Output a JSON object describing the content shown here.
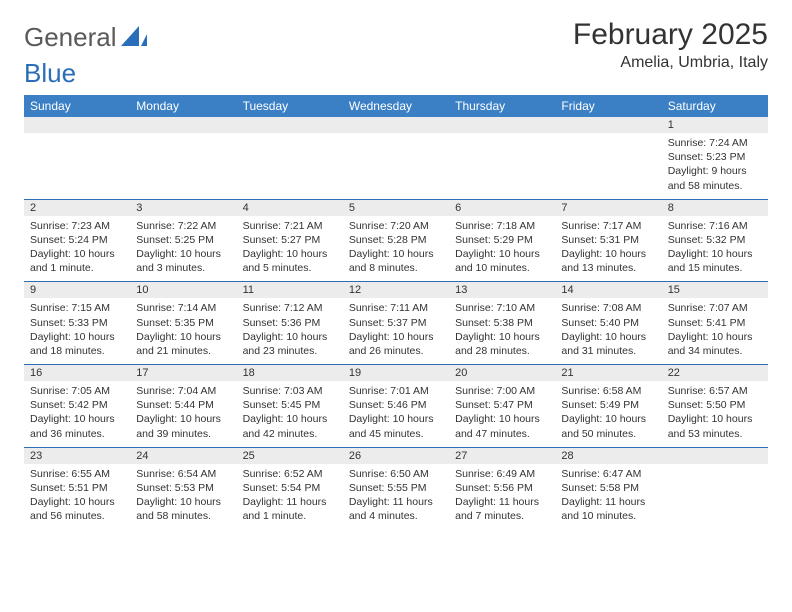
{
  "logo": {
    "word1": "General",
    "word2": "Blue"
  },
  "title": "February 2025",
  "location": "Amelia, Umbria, Italy",
  "headers": [
    "Sunday",
    "Monday",
    "Tuesday",
    "Wednesday",
    "Thursday",
    "Friday",
    "Saturday"
  ],
  "colors": {
    "header_bg": "#3b7fc4",
    "header_text": "#ffffff",
    "rule": "#2a6db8",
    "daynum_bg": "#ececec",
    "text": "#333333",
    "background": "#ffffff"
  },
  "typography": {
    "title_fontsize": 30,
    "location_fontsize": 16,
    "header_fontsize": 12,
    "daynum_fontsize": 11,
    "body_fontsize": 10.5,
    "font_family": "Arial"
  },
  "weeks": [
    [
      null,
      null,
      null,
      null,
      null,
      null,
      {
        "n": "1",
        "sr": "Sunrise: 7:24 AM",
        "ss": "Sunset: 5:23 PM",
        "dl": "Daylight: 9 hours and 58 minutes."
      }
    ],
    [
      {
        "n": "2",
        "sr": "Sunrise: 7:23 AM",
        "ss": "Sunset: 5:24 PM",
        "dl": "Daylight: 10 hours and 1 minute."
      },
      {
        "n": "3",
        "sr": "Sunrise: 7:22 AM",
        "ss": "Sunset: 5:25 PM",
        "dl": "Daylight: 10 hours and 3 minutes."
      },
      {
        "n": "4",
        "sr": "Sunrise: 7:21 AM",
        "ss": "Sunset: 5:27 PM",
        "dl": "Daylight: 10 hours and 5 minutes."
      },
      {
        "n": "5",
        "sr": "Sunrise: 7:20 AM",
        "ss": "Sunset: 5:28 PM",
        "dl": "Daylight: 10 hours and 8 minutes."
      },
      {
        "n": "6",
        "sr": "Sunrise: 7:18 AM",
        "ss": "Sunset: 5:29 PM",
        "dl": "Daylight: 10 hours and 10 minutes."
      },
      {
        "n": "7",
        "sr": "Sunrise: 7:17 AM",
        "ss": "Sunset: 5:31 PM",
        "dl": "Daylight: 10 hours and 13 minutes."
      },
      {
        "n": "8",
        "sr": "Sunrise: 7:16 AM",
        "ss": "Sunset: 5:32 PM",
        "dl": "Daylight: 10 hours and 15 minutes."
      }
    ],
    [
      {
        "n": "9",
        "sr": "Sunrise: 7:15 AM",
        "ss": "Sunset: 5:33 PM",
        "dl": "Daylight: 10 hours and 18 minutes."
      },
      {
        "n": "10",
        "sr": "Sunrise: 7:14 AM",
        "ss": "Sunset: 5:35 PM",
        "dl": "Daylight: 10 hours and 21 minutes."
      },
      {
        "n": "11",
        "sr": "Sunrise: 7:12 AM",
        "ss": "Sunset: 5:36 PM",
        "dl": "Daylight: 10 hours and 23 minutes."
      },
      {
        "n": "12",
        "sr": "Sunrise: 7:11 AM",
        "ss": "Sunset: 5:37 PM",
        "dl": "Daylight: 10 hours and 26 minutes."
      },
      {
        "n": "13",
        "sr": "Sunrise: 7:10 AM",
        "ss": "Sunset: 5:38 PM",
        "dl": "Daylight: 10 hours and 28 minutes."
      },
      {
        "n": "14",
        "sr": "Sunrise: 7:08 AM",
        "ss": "Sunset: 5:40 PM",
        "dl": "Daylight: 10 hours and 31 minutes."
      },
      {
        "n": "15",
        "sr": "Sunrise: 7:07 AM",
        "ss": "Sunset: 5:41 PM",
        "dl": "Daylight: 10 hours and 34 minutes."
      }
    ],
    [
      {
        "n": "16",
        "sr": "Sunrise: 7:05 AM",
        "ss": "Sunset: 5:42 PM",
        "dl": "Daylight: 10 hours and 36 minutes."
      },
      {
        "n": "17",
        "sr": "Sunrise: 7:04 AM",
        "ss": "Sunset: 5:44 PM",
        "dl": "Daylight: 10 hours and 39 minutes."
      },
      {
        "n": "18",
        "sr": "Sunrise: 7:03 AM",
        "ss": "Sunset: 5:45 PM",
        "dl": "Daylight: 10 hours and 42 minutes."
      },
      {
        "n": "19",
        "sr": "Sunrise: 7:01 AM",
        "ss": "Sunset: 5:46 PM",
        "dl": "Daylight: 10 hours and 45 minutes."
      },
      {
        "n": "20",
        "sr": "Sunrise: 7:00 AM",
        "ss": "Sunset: 5:47 PM",
        "dl": "Daylight: 10 hours and 47 minutes."
      },
      {
        "n": "21",
        "sr": "Sunrise: 6:58 AM",
        "ss": "Sunset: 5:49 PM",
        "dl": "Daylight: 10 hours and 50 minutes."
      },
      {
        "n": "22",
        "sr": "Sunrise: 6:57 AM",
        "ss": "Sunset: 5:50 PM",
        "dl": "Daylight: 10 hours and 53 minutes."
      }
    ],
    [
      {
        "n": "23",
        "sr": "Sunrise: 6:55 AM",
        "ss": "Sunset: 5:51 PM",
        "dl": "Daylight: 10 hours and 56 minutes."
      },
      {
        "n": "24",
        "sr": "Sunrise: 6:54 AM",
        "ss": "Sunset: 5:53 PM",
        "dl": "Daylight: 10 hours and 58 minutes."
      },
      {
        "n": "25",
        "sr": "Sunrise: 6:52 AM",
        "ss": "Sunset: 5:54 PM",
        "dl": "Daylight: 11 hours and 1 minute."
      },
      {
        "n": "26",
        "sr": "Sunrise: 6:50 AM",
        "ss": "Sunset: 5:55 PM",
        "dl": "Daylight: 11 hours and 4 minutes."
      },
      {
        "n": "27",
        "sr": "Sunrise: 6:49 AM",
        "ss": "Sunset: 5:56 PM",
        "dl": "Daylight: 11 hours and 7 minutes."
      },
      {
        "n": "28",
        "sr": "Sunrise: 6:47 AM",
        "ss": "Sunset: 5:58 PM",
        "dl": "Daylight: 11 hours and 10 minutes."
      },
      null
    ]
  ]
}
